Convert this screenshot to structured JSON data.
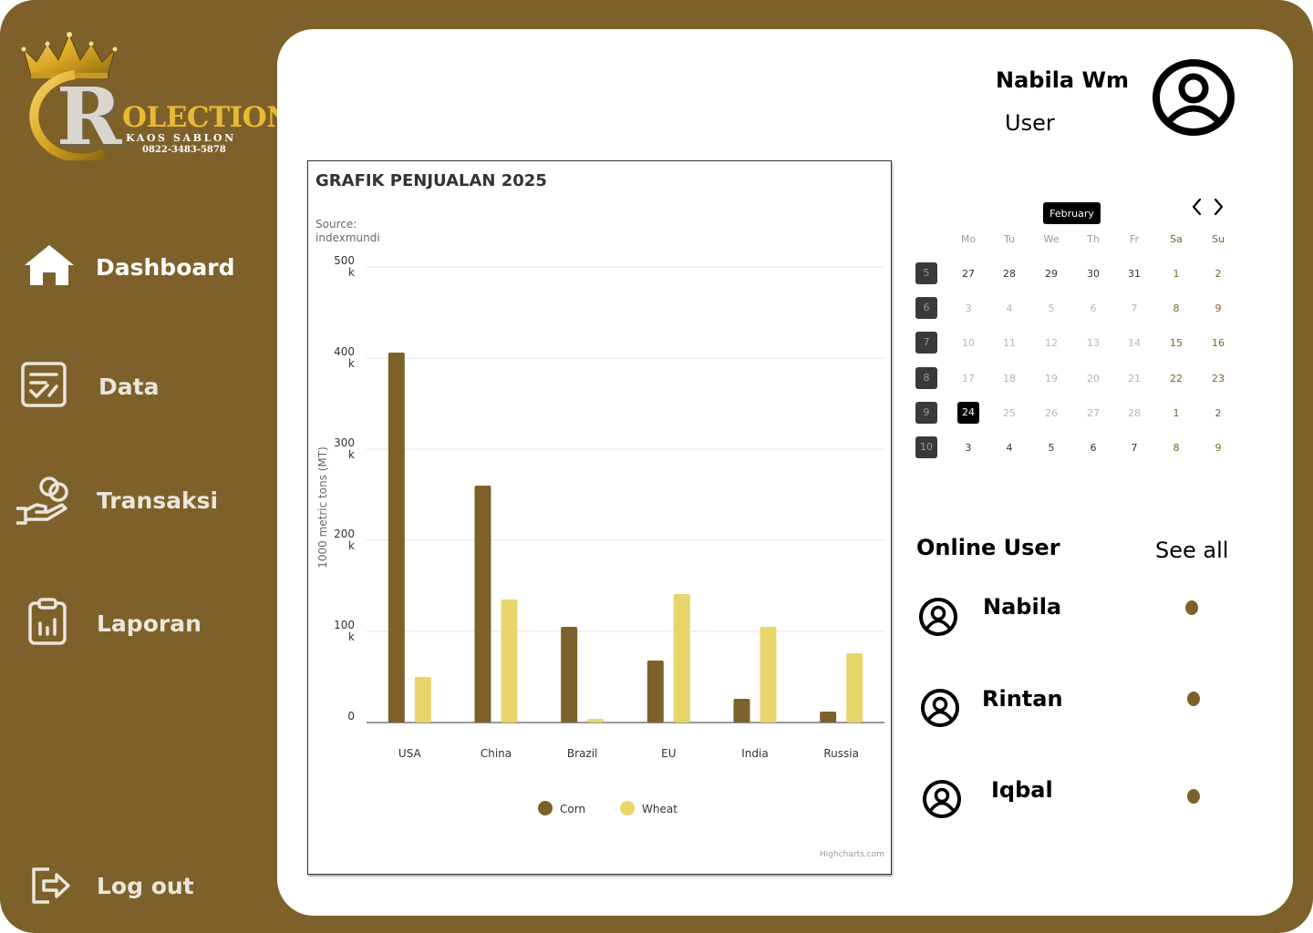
{
  "brand": {
    "logo_letter": "R",
    "logo_word": "OLECTION",
    "logo_sub": "KAOS SABLON",
    "logo_phone": "0822-3483-5878",
    "accent": "#7e612a",
    "gold": "#e9b834"
  },
  "sidebar": {
    "items": [
      {
        "label": "Dashboard",
        "icon": "home-icon"
      },
      {
        "label": "Data",
        "icon": "checklist-icon"
      },
      {
        "label": "Transaksi",
        "icon": "hand-coins-icon"
      },
      {
        "label": "Laporan",
        "icon": "clipboard-chart-icon"
      }
    ],
    "logout": {
      "label": "Log out",
      "icon": "logout-icon"
    }
  },
  "user": {
    "name": "Nabila Wm",
    "role": "User",
    "avatar_icon": "user-circle-icon"
  },
  "chart_data": {
    "type": "bar",
    "title": "GRAFIK PENJUALAN 2025",
    "subtitle": "Source: indexmundi",
    "ylabel": "1000 metric tons (MT)",
    "xlabel": "",
    "categories": [
      "USA",
      "China",
      "Brazil",
      "EU",
      "India",
      "Russia"
    ],
    "series": [
      {
        "name": "Corn",
        "color": "#7e612a",
        "values": [
          406000,
          260000,
          105000,
          68000,
          26000,
          12000
        ]
      },
      {
        "name": "Wheat",
        "color": "#e8d56c",
        "values": [
          50000,
          135000,
          4000,
          141000,
          105000,
          76000
        ]
      }
    ],
    "ylim": [
      0,
      500000
    ],
    "yticks": [
      "0",
      "100 k",
      "200 k",
      "300 k",
      "400 k",
      "500 k"
    ],
    "grid": true,
    "legend": "bottom-center",
    "credit": "Highcharts.com"
  },
  "calendar": {
    "month": "February",
    "days_of_week": [
      "Mo",
      "Tu",
      "We",
      "Th",
      "Fr",
      "Sa",
      "Su"
    ],
    "weeks": [
      {
        "num": "5",
        "days": [
          "27",
          "28",
          "29",
          "30",
          "31",
          "1",
          "2"
        ]
      },
      {
        "num": "6",
        "days": [
          "3",
          "4",
          "5",
          "6",
          "7",
          "8",
          "9"
        ]
      },
      {
        "num": "7",
        "days": [
          "10",
          "11",
          "12",
          "13",
          "14",
          "15",
          "16"
        ]
      },
      {
        "num": "8",
        "days": [
          "17",
          "18",
          "19",
          "20",
          "21",
          "22",
          "23"
        ]
      },
      {
        "num": "9",
        "days": [
          "24",
          "25",
          "26",
          "27",
          "28",
          "1",
          "2"
        ]
      },
      {
        "num": "10",
        "days": [
          "3",
          "4",
          "5",
          "6",
          "7",
          "8",
          "9"
        ]
      }
    ],
    "selected_day": "24"
  },
  "online_users": {
    "title": "Online User",
    "see_all": "See all",
    "users": [
      {
        "name": "Nabila",
        "status_color": "#7e612a"
      },
      {
        "name": "Rintan",
        "status_color": "#7e612a"
      },
      {
        "name": "Iqbal",
        "status_color": "#7e612a"
      }
    ]
  }
}
